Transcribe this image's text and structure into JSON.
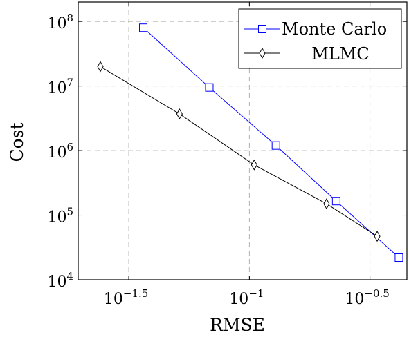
{
  "chart_data": {
    "type": "line",
    "xlabel": "RMSE",
    "ylabel": "Cost",
    "x_scale": "log10",
    "y_scale": "log10",
    "xlim": [
      0.0195,
      0.45
    ],
    "ylim": [
      10000,
      200000000
    ],
    "x_ticks": [
      {
        "value": 0.0316,
        "base": "10",
        "exp": "−1.5"
      },
      {
        "value": 0.1,
        "base": "10",
        "exp": "−1"
      },
      {
        "value": 0.3162,
        "base": "10",
        "exp": "−0.5"
      }
    ],
    "y_ticks": [
      {
        "value": 10000,
        "base": "10",
        "exp": "4"
      },
      {
        "value": 100000,
        "base": "10",
        "exp": "5"
      },
      {
        "value": 1000000,
        "base": "10",
        "exp": "6"
      },
      {
        "value": 10000000,
        "base": "10",
        "exp": "7"
      },
      {
        "value": 100000000,
        "base": "10",
        "exp": "8"
      }
    ],
    "grid": true,
    "legend_position": "top-right",
    "series": [
      {
        "name": "Monte Carlo",
        "color": "#0000ff",
        "marker": "square",
        "x": [
          0.0363,
          0.0682,
          0.1288,
          0.2291,
          0.4169
        ],
        "y": [
          80000000,
          9500000,
          1200000,
          165000,
          22000
        ]
      },
      {
        "name": "MLMC",
        "color": "#000000",
        "marker": "diamond",
        "x": [
          0.0241,
          0.0513,
          0.1047,
          0.2089,
          0.3388
        ],
        "y": [
          20000000,
          3700000,
          600000,
          150000,
          47000
        ]
      }
    ]
  }
}
